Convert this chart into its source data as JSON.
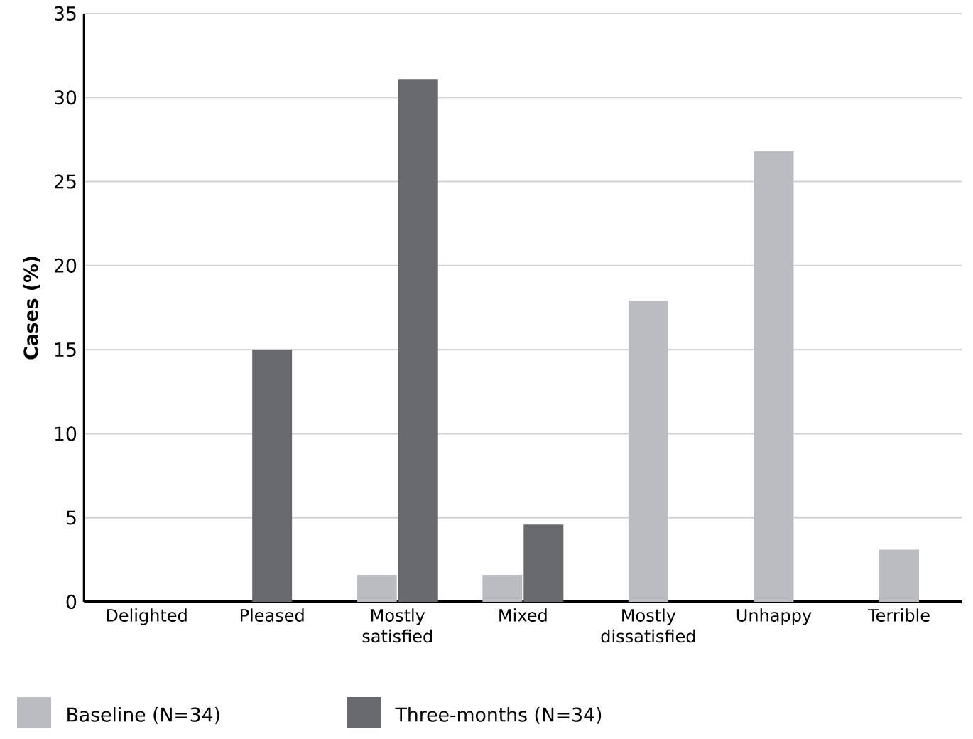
{
  "chart_data": {
    "type": "bar",
    "ylabel": "Cases (%)",
    "categories": [
      "Delighted",
      "Pleased",
      "Mostly\nsatisfied",
      "Mixed",
      "Mostly\ndissatisfied",
      "Unhappy",
      "Terrible"
    ],
    "series": [
      {
        "name": "Baseline (N=34)",
        "color": "#bbbcbf",
        "values": [
          null,
          null,
          1.6,
          1.6,
          17.9,
          26.8,
          3.1
        ]
      },
      {
        "name": "Three-months (N=34)",
        "color": "#68696d",
        "values": [
          null,
          15,
          31.1,
          4.6,
          null,
          null,
          null
        ]
      }
    ],
    "ylim": [
      0,
      35
    ],
    "yticks": [
      0,
      5,
      10,
      15,
      20,
      25,
      30,
      35
    ],
    "grid": "y",
    "legend": "bottom"
  }
}
